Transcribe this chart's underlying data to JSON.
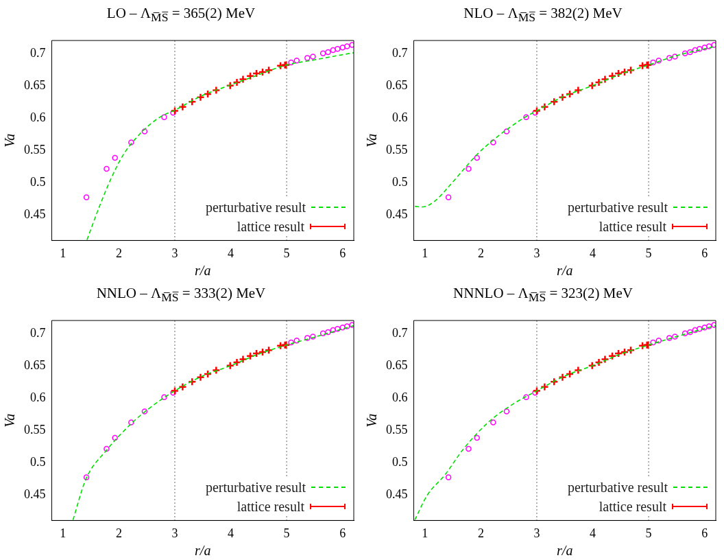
{
  "chart_data": [
    {
      "type": "line",
      "title": "LO  –  Λ$_{M̅S̅}$ = 365(2) MeV",
      "xlabel": "r/a",
      "ylabel": "Va",
      "xlim": [
        0.8,
        6.2
      ],
      "xticks": [
        1,
        2,
        3,
        4,
        5,
        6
      ],
      "ylim": [
        0.41,
        0.72
      ],
      "yticks": [
        0.45,
        0.5,
        0.55,
        0.6,
        0.65,
        0.7
      ],
      "grid": false,
      "legend": "bottom right",
      "ref_lines": [
        {
          "axis": "x",
          "value": 3,
          "color": "#808080",
          "line_style": "dotted"
        },
        {
          "axis": "x",
          "value": 5,
          "color": "#808080",
          "line_style": "dotted"
        }
      ],
      "series": [
        {
          "name": "perturbative result",
          "color": "#00e000",
          "line_style": "dashed",
          "x": [
            1.43,
            1.64,
            1.86,
            2.08,
            2.31,
            2.53,
            2.75,
            3.0,
            3.5,
            4.0,
            4.5,
            5.0,
            5.5,
            6.0,
            6.2
          ],
          "values": [
            0.411,
            0.46,
            0.506,
            0.543,
            0.569,
            0.588,
            0.602,
            0.612,
            0.635,
            0.651,
            0.667,
            0.682,
            0.69,
            0.698,
            0.701
          ]
        },
        {
          "name": "lattice result",
          "type": "scatter",
          "marker": "cross",
          "color": "#ff0000",
          "x": [
            3.0,
            3.14,
            3.31,
            3.46,
            3.59,
            3.74,
            3.99,
            4.11,
            4.22,
            4.35,
            4.46,
            4.57,
            4.68,
            4.89,
            4.97,
            4.99
          ],
          "values": [
            0.611,
            0.617,
            0.625,
            0.632,
            0.637,
            0.643,
            0.65,
            0.655,
            0.66,
            0.665,
            0.669,
            0.671,
            0.674,
            0.681,
            0.682,
            0.682
          ]
        },
        {
          "type": "scatter",
          "marker": "circle",
          "color": "#ff00ff",
          "x": [
            1.42,
            1.78,
            1.93,
            2.22,
            2.46,
            2.81,
            2.97,
            5.08,
            5.18,
            5.37,
            5.47,
            5.65,
            5.74,
            5.83,
            5.91,
            6.0,
            6.08,
            6.17
          ],
          "values": [
            0.477,
            0.521,
            0.538,
            0.562,
            0.579,
            0.601,
            0.608,
            0.686,
            0.689,
            0.693,
            0.695,
            0.7,
            0.702,
            0.705,
            0.707,
            0.709,
            0.711,
            0.713
          ]
        }
      ]
    },
    {
      "type": "line",
      "title": "NLO  –  Λ$_{M̅S̅}$ = 382(2) MeV",
      "xlabel": "r/a",
      "ylabel": "Va",
      "xlim": [
        0.8,
        6.2
      ],
      "xticks": [
        1,
        2,
        3,
        4,
        5,
        6
      ],
      "ylim": [
        0.41,
        0.72
      ],
      "yticks": [
        0.45,
        0.5,
        0.55,
        0.6,
        0.65,
        0.7
      ],
      "grid": false,
      "legend": "bottom right",
      "ref_lines": [
        {
          "axis": "x",
          "value": 3,
          "color": "#808080",
          "line_style": "dotted"
        },
        {
          "axis": "x",
          "value": 5,
          "color": "#808080",
          "line_style": "dotted"
        }
      ],
      "series": [
        {
          "name": "perturbative result",
          "color": "#00e000",
          "line_style": "dashed",
          "x": [
            0.82,
            0.96,
            1.19,
            1.41,
            1.72,
            1.94,
            2.21,
            2.48,
            2.75,
            3.0,
            3.5,
            4.0,
            4.5,
            5.0,
            5.48,
            6.15,
            6.2
          ],
          "values": [
            0.463,
            0.462,
            0.472,
            0.492,
            0.523,
            0.544,
            0.565,
            0.583,
            0.599,
            0.611,
            0.634,
            0.65,
            0.668,
            0.682,
            0.696,
            0.71,
            0.711
          ]
        },
        {
          "name": "lattice result",
          "type": "scatter",
          "marker": "cross",
          "color": "#ff0000",
          "x": [
            3.0,
            3.14,
            3.31,
            3.46,
            3.59,
            3.74,
            3.99,
            4.11,
            4.22,
            4.35,
            4.46,
            4.57,
            4.68,
            4.89,
            4.97,
            4.99
          ],
          "values": [
            0.611,
            0.617,
            0.625,
            0.632,
            0.637,
            0.643,
            0.65,
            0.655,
            0.66,
            0.665,
            0.669,
            0.671,
            0.674,
            0.681,
            0.682,
            0.682
          ]
        },
        {
          "type": "scatter",
          "marker": "circle",
          "color": "#ff00ff",
          "x": [
            1.42,
            1.78,
            1.93,
            2.22,
            2.46,
            2.81,
            2.97,
            5.08,
            5.18,
            5.37,
            5.47,
            5.65,
            5.74,
            5.83,
            5.91,
            6.0,
            6.08,
            6.17
          ],
          "values": [
            0.477,
            0.521,
            0.538,
            0.562,
            0.579,
            0.601,
            0.608,
            0.686,
            0.689,
            0.693,
            0.695,
            0.7,
            0.702,
            0.705,
            0.707,
            0.709,
            0.711,
            0.713
          ]
        }
      ]
    },
    {
      "type": "line",
      "title": "NNLO  –  Λ$_{M̅S̅}$ = 333(2) MeV",
      "xlabel": "r/a",
      "ylabel": "Va",
      "xlim": [
        0.8,
        6.2
      ],
      "xticks": [
        1,
        2,
        3,
        4,
        5,
        6
      ],
      "ylim": [
        0.41,
        0.72
      ],
      "yticks": [
        0.45,
        0.5,
        0.55,
        0.6,
        0.65,
        0.7
      ],
      "grid": false,
      "legend": "bottom right",
      "ref_lines": [
        {
          "axis": "x",
          "value": 3,
          "color": "#808080",
          "line_style": "dotted"
        },
        {
          "axis": "x",
          "value": 5,
          "color": "#808080",
          "line_style": "dotted"
        }
      ],
      "series": [
        {
          "name": "perturbative result",
          "color": "#00e000",
          "line_style": "dashed",
          "x": [
            1.18,
            1.41,
            1.78,
            2.22,
            2.53,
            3.0,
            3.5,
            4.0,
            4.5,
            5.0,
            5.49,
            6.2
          ],
          "values": [
            0.411,
            0.474,
            0.519,
            0.56,
            0.583,
            0.611,
            0.634,
            0.65,
            0.668,
            0.682,
            0.694,
            0.712
          ]
        },
        {
          "name": "lattice result",
          "type": "scatter",
          "marker": "cross",
          "color": "#ff0000",
          "x": [
            3.0,
            3.14,
            3.31,
            3.46,
            3.59,
            3.74,
            3.99,
            4.11,
            4.22,
            4.35,
            4.46,
            4.57,
            4.68,
            4.89,
            4.97,
            4.99
          ],
          "values": [
            0.611,
            0.617,
            0.625,
            0.632,
            0.637,
            0.643,
            0.65,
            0.655,
            0.66,
            0.665,
            0.669,
            0.671,
            0.674,
            0.681,
            0.682,
            0.682
          ]
        },
        {
          "type": "scatter",
          "marker": "circle",
          "color": "#ff00ff",
          "x": [
            1.42,
            1.78,
            1.93,
            2.22,
            2.46,
            2.81,
            2.97,
            5.08,
            5.18,
            5.37,
            5.47,
            5.65,
            5.74,
            5.83,
            5.91,
            6.0,
            6.08,
            6.17
          ],
          "values": [
            0.477,
            0.521,
            0.538,
            0.562,
            0.579,
            0.601,
            0.608,
            0.686,
            0.689,
            0.693,
            0.695,
            0.7,
            0.702,
            0.705,
            0.707,
            0.709,
            0.711,
            0.713
          ]
        }
      ]
    },
    {
      "type": "line",
      "title": "NNNLO  –  Λ$_{M̅S̅}$ = 323(2) MeV",
      "xlabel": "r/a",
      "ylabel": "Va",
      "xlim": [
        0.8,
        6.2
      ],
      "xticks": [
        1,
        2,
        3,
        4,
        5,
        6
      ],
      "ylim": [
        0.41,
        0.72
      ],
      "yticks": [
        0.45,
        0.5,
        0.55,
        0.6,
        0.65,
        0.7
      ],
      "grid": false,
      "legend": "bottom right",
      "ref_lines": [
        {
          "axis": "x",
          "value": 3,
          "color": "#808080",
          "line_style": "dotted"
        },
        {
          "axis": "x",
          "value": 5,
          "color": "#808080",
          "line_style": "dotted"
        }
      ],
      "series": [
        {
          "name": "perturbative result",
          "color": "#00e000",
          "line_style": "dashed",
          "x": [
            0.82,
            1.04,
            1.36,
            1.69,
            2.13,
            2.53,
            3.0,
            3.5,
            4.0,
            4.5,
            5.0,
            5.5,
            6.15,
            6.2
          ],
          "values": [
            0.411,
            0.449,
            0.481,
            0.521,
            0.562,
            0.588,
            0.611,
            0.634,
            0.65,
            0.668,
            0.682,
            0.695,
            0.711,
            0.712
          ]
        },
        {
          "name": "lattice result",
          "type": "scatter",
          "marker": "cross",
          "color": "#ff0000",
          "x": [
            3.0,
            3.14,
            3.31,
            3.46,
            3.59,
            3.74,
            3.99,
            4.11,
            4.22,
            4.35,
            4.46,
            4.57,
            4.68,
            4.89,
            4.97,
            4.99
          ],
          "values": [
            0.611,
            0.617,
            0.625,
            0.632,
            0.637,
            0.643,
            0.65,
            0.655,
            0.66,
            0.665,
            0.669,
            0.671,
            0.674,
            0.681,
            0.682,
            0.682
          ]
        },
        {
          "type": "scatter",
          "marker": "circle",
          "color": "#ff00ff",
          "x": [
            1.42,
            1.78,
            1.93,
            2.22,
            2.46,
            2.81,
            2.97,
            5.08,
            5.18,
            5.37,
            5.47,
            5.65,
            5.74,
            5.83,
            5.91,
            6.0,
            6.08,
            6.17
          ],
          "values": [
            0.477,
            0.521,
            0.538,
            0.562,
            0.579,
            0.601,
            0.608,
            0.686,
            0.689,
            0.693,
            0.695,
            0.7,
            0.702,
            0.705,
            0.707,
            0.709,
            0.711,
            0.713
          ]
        }
      ]
    }
  ]
}
